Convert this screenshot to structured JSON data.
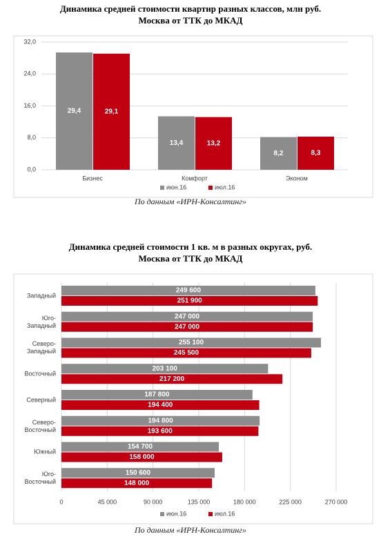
{
  "chart_data": [
    {
      "type": "bar",
      "title": "Динамика средней стоимости квартир разных классов, млн руб.",
      "subtitle": "Москва от ТТК до МКАД",
      "categories": [
        "Бизнес",
        "Комфорт",
        "Эконом"
      ],
      "series": [
        {
          "name": "июн.16",
          "color": "#8c8c8c",
          "values": [
            29.4,
            13.4,
            8.2
          ],
          "value_labels": [
            "29,4",
            "13,4",
            "8,2"
          ]
        },
        {
          "name": "июл.16",
          "color": "#c00010",
          "values": [
            29.1,
            13.2,
            8.3
          ],
          "value_labels": [
            "29,1",
            "13,2",
            "8,3"
          ]
        }
      ],
      "ylim": [
        0,
        32
      ],
      "yticks": [
        {
          "value": 0,
          "label": "0,0"
        },
        {
          "value": 8,
          "label": "8,0"
        },
        {
          "value": 16,
          "label": "16,0"
        },
        {
          "value": 24,
          "label": "24,0"
        },
        {
          "value": 32,
          "label": "32,0"
        }
      ],
      "grid": true,
      "source": "По данным «ИРН-Консалтинг»"
    },
    {
      "type": "hbar",
      "title": "Динамика средней стоимости 1 кв. м в разных округах, руб.",
      "subtitle": "Москва от ТТК до МКАД",
      "categories": [
        "Западный",
        "Юго-\nЗападный",
        "Северо-\nЗападный",
        "Восточный",
        "Северный",
        "Северо-\nВосточный",
        "Южный",
        "Юго-\nВосточный"
      ],
      "series": [
        {
          "name": "июн.16",
          "color": "#8c8c8c",
          "values": [
            249600,
            247000,
            255100,
            203100,
            187800,
            194800,
            154700,
            150600
          ],
          "value_labels": [
            "249 600",
            "247 000",
            "255 100",
            "203 100",
            "187 800",
            "194 800",
            "154 700",
            "150 600"
          ]
        },
        {
          "name": "июл.16",
          "color": "#c00010",
          "values": [
            251900,
            247000,
            245500,
            217200,
            194400,
            193600,
            158000,
            148000
          ],
          "value_labels": [
            "251 900",
            "247 000",
            "245 500",
            "217 200",
            "194 400",
            "193 600",
            "158 000",
            "148 000"
          ]
        }
      ],
      "xlim": [
        0,
        270000
      ],
      "xticks": [
        0,
        {
          "value": 45000,
          "label": "45 000"
        },
        {
          "value": 90000,
          "label": "90 000"
        },
        {
          "value": 135000,
          "label": "135 000"
        },
        {
          "value": 180000,
          "label": "180 000"
        },
        {
          "value": 225000,
          "label": "225 000"
        },
        {
          "value": 270000,
          "label": "270 000"
        }
      ],
      "grid": true,
      "source": "По данным «ИРН-Консалтинг»"
    }
  ]
}
